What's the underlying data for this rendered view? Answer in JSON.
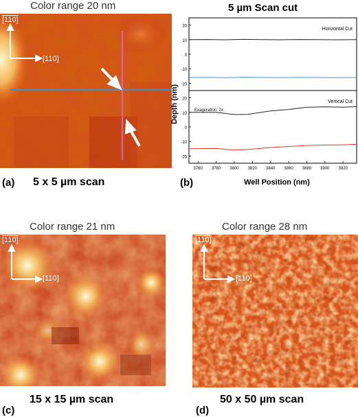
{
  "panels": {
    "a": {
      "title": "Color range 20 nm",
      "letter": "(a)",
      "scan_label": "5  x 5 µm scan",
      "dir_vertical": "[110]",
      "dir_horizontal": "[110]",
      "colors": {
        "line_horizontal": "#5b85b5",
        "line_vertical": "#d9609a",
        "arrow": "#ffffff"
      }
    },
    "b": {
      "title": "5 µm Scan cut",
      "letter": "(b)"
    },
    "c": {
      "title": "Color range 21 nm",
      "letter": "(c)",
      "scan_label": "15  x 15 µm scan",
      "dir_vertical": "[110]",
      "dir_horizontal": "[110]"
    },
    "d": {
      "title": "Color range 28 nm",
      "letter": "(d)",
      "scan_label": "50  x 50 µm scan",
      "dir_vertical": "[110]",
      "dir_horizontal": "[110]"
    }
  },
  "chart_data": {
    "type": "line",
    "title": "5 µm Scan cut",
    "xlabel": "Well Position (nm)",
    "ylabel": "Depth (nm)",
    "x_ticks": [
      3760,
      3780,
      3800,
      3820,
      3840,
      3860,
      3880,
      3900,
      3920
    ],
    "xlim": [
      3750,
      3935
    ],
    "grid": false,
    "subplots": [
      {
        "name": "Horizontal Cut",
        "annotation": "Horizontal Cut",
        "ylim": [
          -25,
          25
        ],
        "y_ticks": [
          20,
          10,
          0,
          -10,
          -20
        ],
        "series": [
          {
            "color": "#222222",
            "x": [
              3750,
              3770,
              3790,
              3810,
              3830,
              3850,
              3870,
              3890,
              3910,
              3935
            ],
            "y": [
              10,
              10.1,
              9.9,
              10.2,
              10,
              9.9,
              10.1,
              10,
              9.9,
              10
            ]
          },
          {
            "color": "#4a90d9",
            "x": [
              3750,
              3770,
              3790,
              3810,
              3830,
              3850,
              3870,
              3890,
              3910,
              3935
            ],
            "y": [
              -16,
              -15.9,
              -16.2,
              -15.8,
              -16,
              -16.1,
              -15.9,
              -16,
              -16.2,
              -16
            ]
          }
        ]
      },
      {
        "name": "Vertical Cut",
        "annotation": "Vertical Cut",
        "note": "Exageration: 2x",
        "ylim": [
          -25,
          25
        ],
        "y_ticks": [
          20,
          10,
          0,
          -10,
          -20
        ],
        "series": [
          {
            "color": "#222222",
            "x": [
              3750,
              3780,
              3800,
              3815,
              3840,
              3860,
              3880,
              3900,
              3920,
              3935
            ],
            "y": [
              10,
              10,
              8.5,
              8.6,
              11,
              12,
              13.5,
              13.8,
              13.6,
              13.9
            ]
          },
          {
            "color": "#dd3322",
            "x": [
              3750,
              3780,
              3800,
              3815,
              3840,
              3860,
              3880,
              3900,
              3920,
              3935
            ],
            "y": [
              -15,
              -14.8,
              -16,
              -15.5,
              -14.2,
              -13.5,
              -12.8,
              -12.5,
              -12.3,
              -12
            ]
          }
        ]
      }
    ]
  }
}
